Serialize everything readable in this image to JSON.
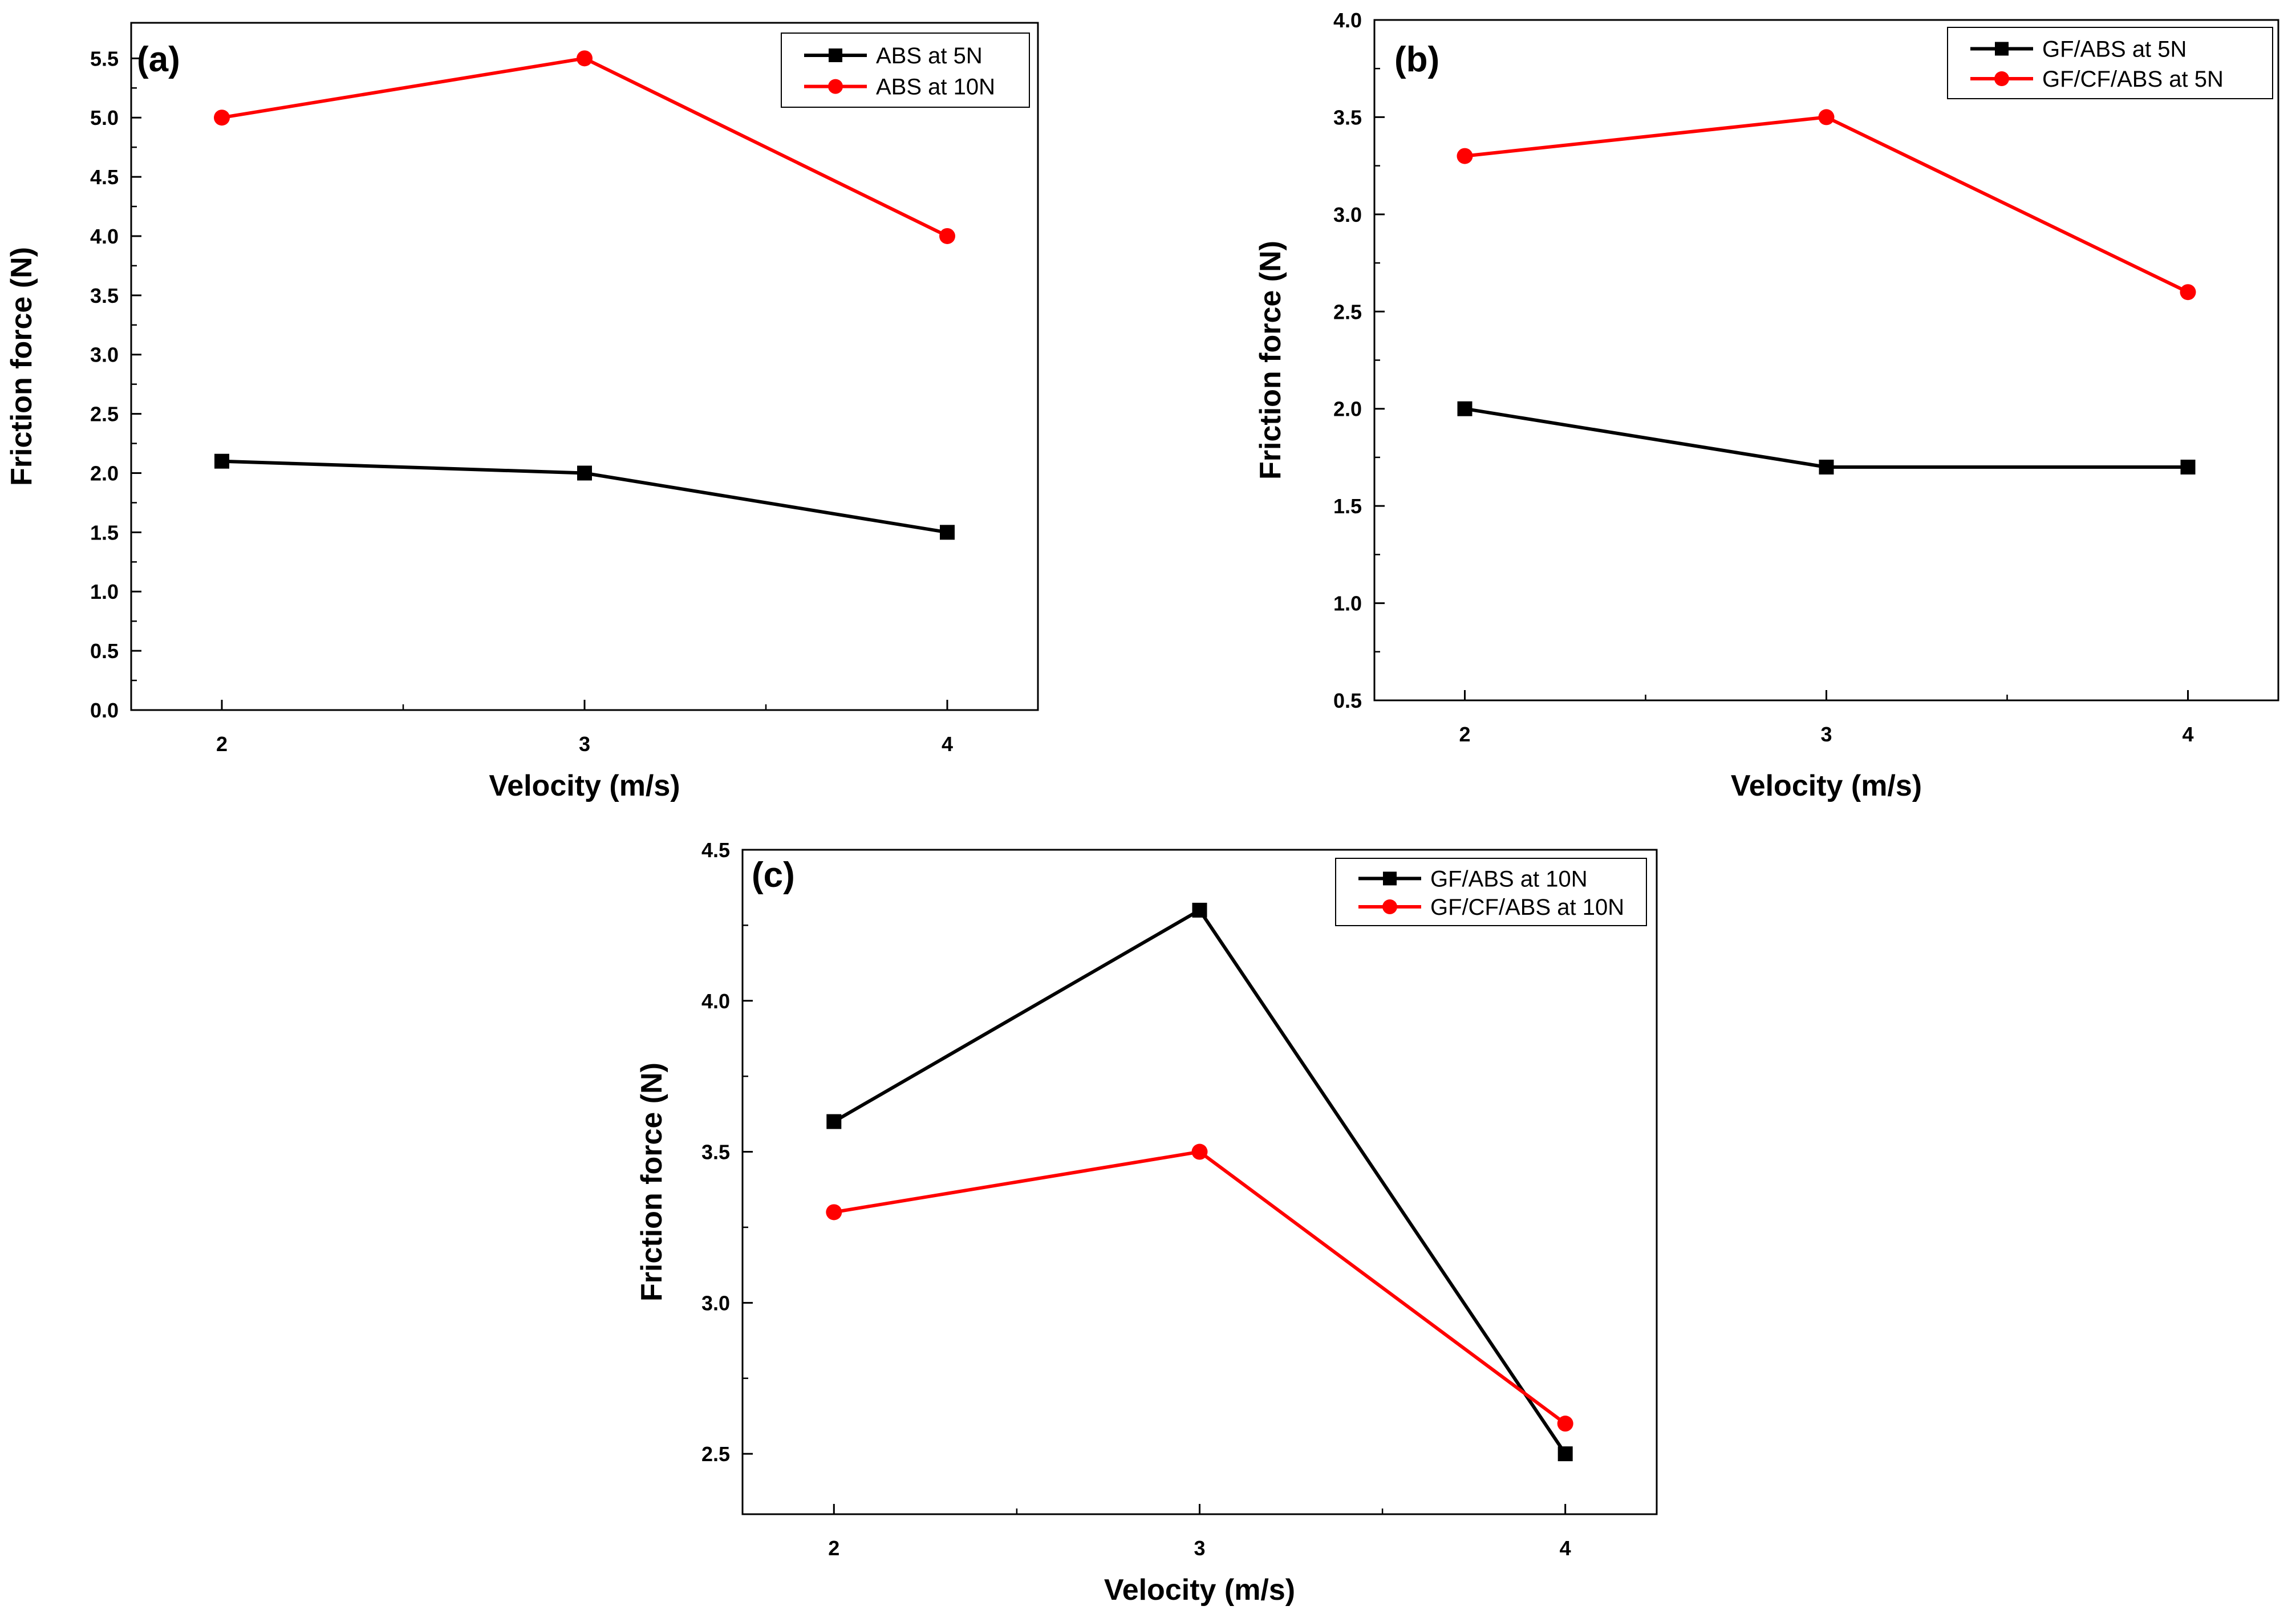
{
  "figure": {
    "description_panels": [
      "a",
      "b",
      "c"
    ]
  },
  "colors": {
    "black_series": "#000000",
    "red_series": "#ff0000",
    "axis": "#000000"
  },
  "chart_data": [
    {
      "type": "line",
      "panel_label": "(a)",
      "xlabel": "Velocity (m/s)",
      "ylabel": "Friction force (N)",
      "x": [
        2,
        3,
        4
      ],
      "xlim": [
        1.75,
        4.25
      ],
      "ylim": [
        0,
        5.8
      ],
      "yticks": [
        "0.0",
        "0.5",
        "1.0",
        "1.5",
        "2.0",
        "2.5",
        "3.0",
        "3.5",
        "4.0",
        "4.5",
        "5.0",
        "5.5"
      ],
      "ytick_values": [
        0,
        0.5,
        1,
        1.5,
        2,
        2.5,
        3,
        3.5,
        4,
        4.5,
        5,
        5.5
      ],
      "xticks": [
        "2",
        "3",
        "4"
      ],
      "legend_position": "top-right",
      "series": [
        {
          "name": "ABS at 5N",
          "color": "#000000",
          "marker": "square",
          "values": [
            2.1,
            2.0,
            1.5
          ]
        },
        {
          "name": "ABS at 10N",
          "color": "#ff0000",
          "marker": "circle",
          "values": [
            5.0,
            5.5,
            4.0
          ]
        }
      ]
    },
    {
      "type": "line",
      "panel_label": "(b)",
      "xlabel": "Velocity (m/s)",
      "ylabel": "Friction force (N)",
      "x": [
        2,
        3,
        4
      ],
      "xlim": [
        1.75,
        4.25
      ],
      "ylim": [
        0.5,
        4.0
      ],
      "yticks": [
        "0.5",
        "1.0",
        "1.5",
        "2.0",
        "2.5",
        "3.0",
        "3.5",
        "4.0"
      ],
      "ytick_values": [
        0.5,
        1,
        1.5,
        2,
        2.5,
        3,
        3.5,
        4
      ],
      "xticks": [
        "2",
        "3",
        "4"
      ],
      "legend_position": "top-right",
      "series": [
        {
          "name": "GF/ABS at 5N",
          "color": "#000000",
          "marker": "square",
          "values": [
            2.0,
            1.7,
            1.7
          ]
        },
        {
          "name": "GF/CF/ABS at 5N",
          "color": "#ff0000",
          "marker": "circle",
          "values": [
            3.3,
            3.5,
            2.6
          ]
        }
      ]
    },
    {
      "type": "line",
      "panel_label": "(c)",
      "xlabel": "Velocity (m/s)",
      "ylabel": "Friction force (N)",
      "x": [
        2,
        3,
        4
      ],
      "xlim": [
        1.75,
        4.25
      ],
      "ylim": [
        2.3,
        4.5
      ],
      "yticks": [
        "2.5",
        "3.0",
        "3.5",
        "4.0",
        "4.5"
      ],
      "ytick_values": [
        2.5,
        3,
        3.5,
        4,
        4.5
      ],
      "xticks": [
        "2",
        "3",
        "4"
      ],
      "legend_position": "top-right",
      "series": [
        {
          "name": "GF/ABS at 10N",
          "color": "#000000",
          "marker": "square",
          "values": [
            3.6,
            4.3,
            2.5
          ]
        },
        {
          "name": "GF/CF/ABS at 10N",
          "color": "#ff0000",
          "marker": "circle",
          "values": [
            3.3,
            3.5,
            2.6
          ]
        }
      ]
    }
  ]
}
